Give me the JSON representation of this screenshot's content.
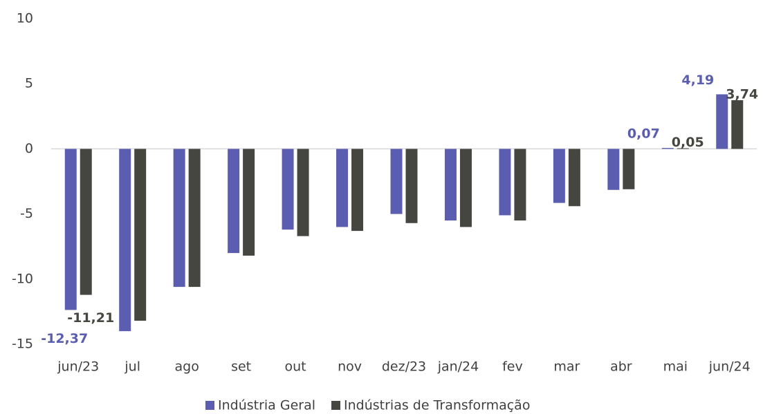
{
  "chart_data": {
    "type": "bar",
    "categories": [
      "jun/23",
      "jul",
      "ago",
      "set",
      "out",
      "nov",
      "dez/23",
      "jan/24",
      "fev",
      "mar",
      "abr",
      "mai",
      "jun/24"
    ],
    "series": [
      {
        "name": "Indústria Geral",
        "color": "#5b5eb0",
        "values": [
          -12.37,
          -14.0,
          -10.6,
          -8.0,
          -6.2,
          -6.0,
          -5.0,
          -5.5,
          -5.1,
          -4.15,
          -3.15,
          0.07,
          4.19
        ],
        "value_labels": [
          "-12,37",
          null,
          null,
          null,
          null,
          null,
          null,
          null,
          null,
          null,
          null,
          "0,07",
          "4,19"
        ]
      },
      {
        "name": "Indústrias de Transformação",
        "color": "#464640",
        "values": [
          -11.21,
          -13.2,
          -10.6,
          -8.2,
          -6.7,
          -6.3,
          -5.7,
          -6.0,
          -5.5,
          -4.4,
          -3.1,
          0.05,
          3.74
        ],
        "value_labels": [
          "-11,21",
          null,
          null,
          null,
          null,
          null,
          null,
          null,
          null,
          null,
          null,
          "0,05",
          "3,74"
        ]
      }
    ],
    "ylim": [
      -15,
      10
    ],
    "yticks": [
      -15,
      -10,
      -5,
      0,
      5,
      10
    ],
    "grid": false
  }
}
